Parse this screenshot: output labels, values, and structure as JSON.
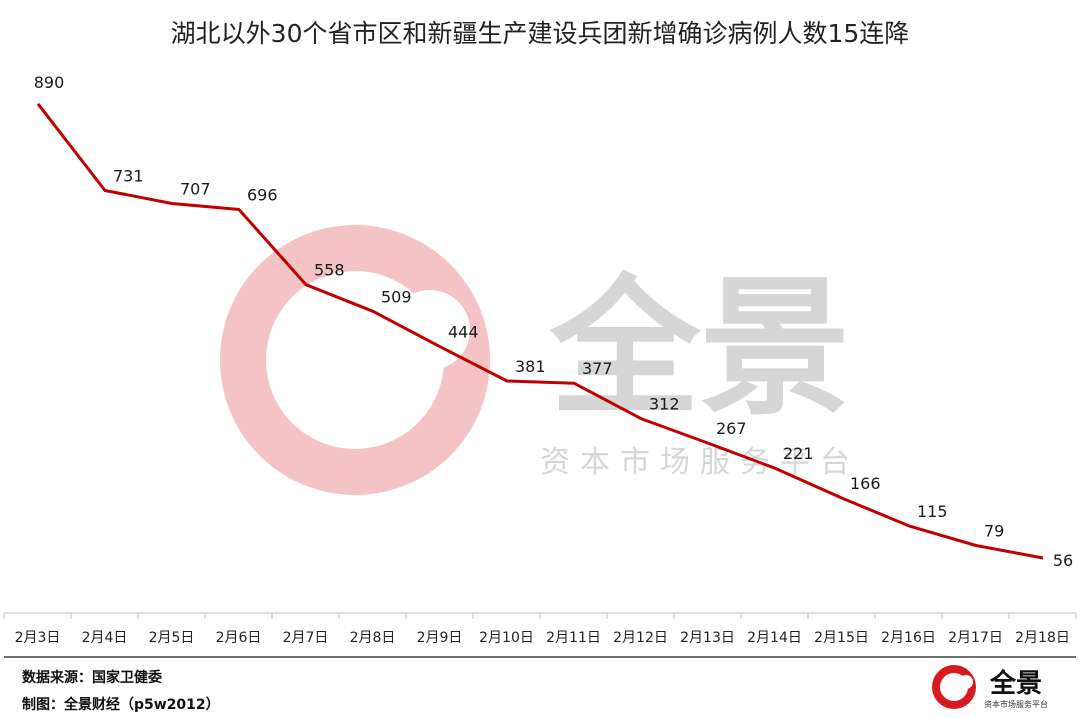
{
  "chart_data": {
    "type": "line",
    "title": "湖北以外30个省市区和新疆生产建设兵团新增确诊病例人数15连降",
    "xlabel": "",
    "ylabel": "",
    "categories": [
      "2月3日",
      "2月4日",
      "2月5日",
      "2月6日",
      "2月7日",
      "2月8日",
      "2月9日",
      "2月10日",
      "2月11日",
      "2月12日",
      "2月13日",
      "2月14日",
      "2月15日",
      "2月16日",
      "2月17日",
      "2月18日"
    ],
    "series": [
      {
        "values": [
          890,
          731,
          707,
          696,
          558,
          509,
          444,
          381,
          377,
          312,
          267,
          221,
          166,
          115,
          79,
          56
        ]
      }
    ],
    "ylim": [
      0,
      1000
    ],
    "grid": false,
    "data_labels": true,
    "line_color": "#c00000"
  },
  "watermark": {
    "brand": "全景",
    "slogan": "资本市场服务平台",
    "brand_color": "#d6d6d6",
    "logo_color": "#f4c3c5"
  },
  "footer": {
    "source": "数据来源：国家卫健委",
    "credit": "制图：全景财经（p5w2012）"
  },
  "logo": {
    "brand": "全景",
    "slogan": "资本市场服务平台",
    "color": "#d71920"
  }
}
